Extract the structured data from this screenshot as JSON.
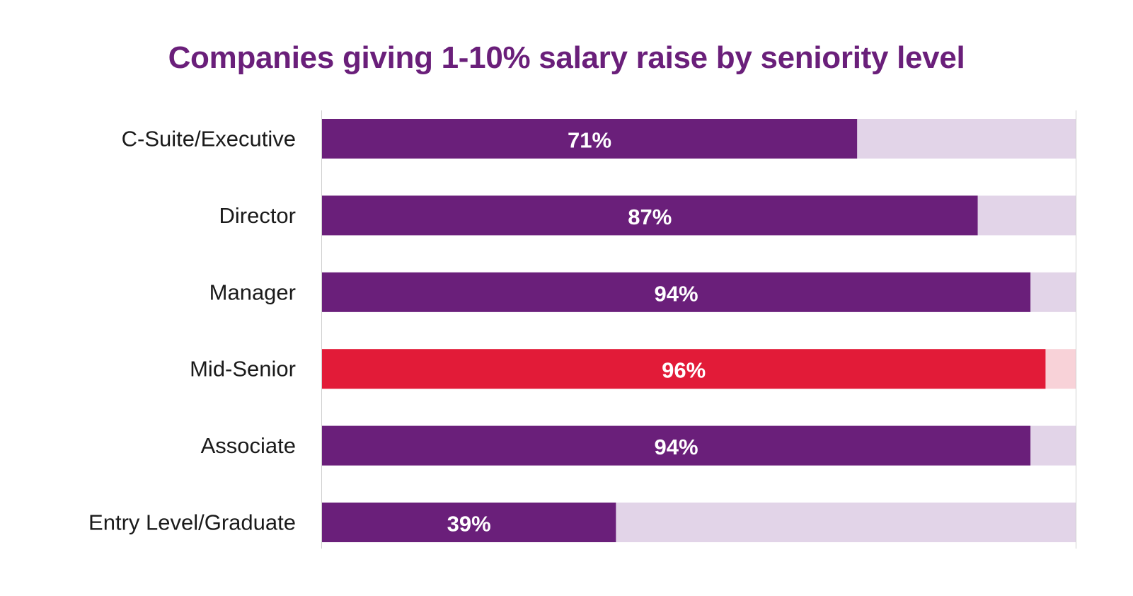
{
  "colors": {
    "title": "#6a1f7a",
    "bar": "#6a1f7a",
    "track": "#e2d4e8",
    "highlight_bar": "#e21b38",
    "highlight_track": "#f8d2d8",
    "axis": "#cfcfcf",
    "category_text": "#1a1a1a",
    "value_text": "#ffffff"
  },
  "chart_data": {
    "type": "bar",
    "orientation": "horizontal",
    "title": "Companies giving 1-10% salary raise by seniority level",
    "xlim": [
      0,
      100
    ],
    "grid": false,
    "legend": "none",
    "categories": [
      "C-Suite/Executive",
      "Director",
      "Manager",
      "Mid-Senior",
      "Associate",
      "Entry Level/Graduate"
    ],
    "values": [
      71,
      87,
      94,
      96,
      94,
      39
    ],
    "value_labels": [
      "71%",
      "87%",
      "94%",
      "96%",
      "94%",
      "39%"
    ],
    "highlighted": [
      false,
      false,
      false,
      true,
      false,
      false
    ]
  }
}
